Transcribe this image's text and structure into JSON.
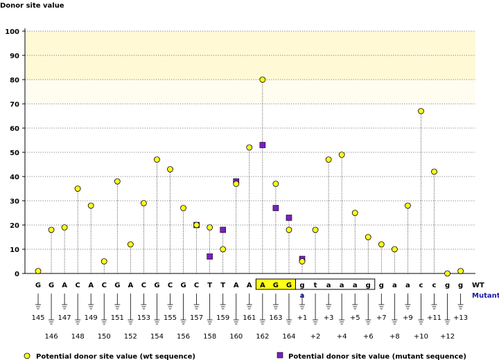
{
  "chart_data": {
    "type": "scatter",
    "title": "Donor site value",
    "ylabel": "Donor site value",
    "ylim": [
      0,
      100
    ],
    "yticks": [
      0,
      10,
      20,
      30,
      40,
      50,
      60,
      70,
      80,
      90,
      100
    ],
    "highlight_bands": [
      {
        "from": 80,
        "to": 100,
        "color": "#fff9d6"
      },
      {
        "from": 70,
        "to": 80,
        "color": "#fffdf0"
      }
    ],
    "wt_label": "WT",
    "mutant_label": "Mutant",
    "sites": [
      {
        "base": "G",
        "pos": "145",
        "wt": 1
      },
      {
        "base": "G",
        "pos": "146",
        "wt": 18
      },
      {
        "base": "A",
        "pos": "147",
        "wt": 19
      },
      {
        "base": "C",
        "pos": "148",
        "wt": 35
      },
      {
        "base": "A",
        "pos": "149",
        "wt": 28
      },
      {
        "base": "C",
        "pos": "150",
        "wt": 5
      },
      {
        "base": "G",
        "pos": "151",
        "wt": 38
      },
      {
        "base": "A",
        "pos": "152",
        "wt": 12
      },
      {
        "base": "C",
        "pos": "153",
        "wt": 29
      },
      {
        "base": "G",
        "pos": "154",
        "wt": 47
      },
      {
        "base": "C",
        "pos": "155",
        "wt": 43
      },
      {
        "base": "G",
        "pos": "156",
        "wt": 27
      },
      {
        "base": "C",
        "pos": "157",
        "wt": 20,
        "mut": 20
      },
      {
        "base": "T",
        "pos": "158",
        "wt": 19,
        "mut": 7
      },
      {
        "base": "T",
        "pos": "159",
        "wt": 10,
        "mut": 18
      },
      {
        "base": "A",
        "pos": "160",
        "wt": 37,
        "mut": 38
      },
      {
        "base": "A",
        "pos": "161",
        "wt": 52
      },
      {
        "base": "A",
        "pos": "162",
        "wt": 80,
        "mut": 53,
        "exon": true
      },
      {
        "base": "G",
        "pos": "163",
        "wt": 37,
        "mut": 27,
        "exon": true
      },
      {
        "base": "G",
        "pos": "164",
        "wt": 18,
        "mut": 23,
        "exon": true
      },
      {
        "base": "g",
        "pos": "+1",
        "wt": 5,
        "mut": 6,
        "intron": true,
        "mut_base": "a"
      },
      {
        "base": "t",
        "pos": "+2",
        "wt": 18,
        "intron": true
      },
      {
        "base": "a",
        "pos": "+3",
        "wt": 47,
        "intron": true
      },
      {
        "base": "a",
        "pos": "+4",
        "wt": 49,
        "intron": true
      },
      {
        "base": "a",
        "pos": "+5",
        "wt": 25,
        "intron": true
      },
      {
        "base": "g",
        "pos": "+6",
        "wt": 15,
        "intron": true
      },
      {
        "base": "g",
        "pos": "+7",
        "wt": 12
      },
      {
        "base": "a",
        "pos": "+8",
        "wt": 10
      },
      {
        "base": "a",
        "pos": "+9",
        "wt": 28
      },
      {
        "base": "c",
        "pos": "+10",
        "wt": 67
      },
      {
        "base": "c",
        "pos": "+11",
        "wt": 42
      },
      {
        "base": "g",
        "pos": "+12",
        "wt": 0
      },
      {
        "base": "g",
        "pos": "+13",
        "wt": 1
      }
    ],
    "legend": {
      "wt": "Potential donor site value (wt sequence)",
      "mutant": "Potential donor site value (mutant sequence)"
    },
    "colors": {
      "wt_fill": "#ffff1a",
      "mut_fill": "#7a1fc2",
      "exon_box": "#ffff1a",
      "mutant_text": "#1a1aa8"
    }
  }
}
